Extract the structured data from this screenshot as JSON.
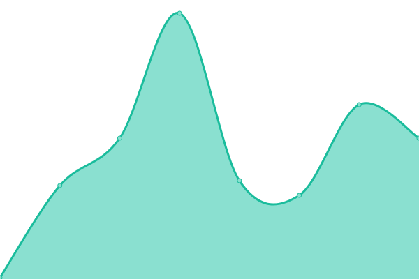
{
  "chart_data": {
    "type": "area",
    "title": "",
    "xlabel": "",
    "ylabel": "",
    "x": [
      0,
      1,
      2,
      3,
      4,
      5,
      6,
      7
    ],
    "values": [
      2,
      134,
      202,
      381,
      141,
      120,
      250,
      202
    ],
    "ylim": [
      0,
      400
    ],
    "grid": false,
    "axes_visible": false,
    "curve": "smooth",
    "colors": {
      "line": "#1abc9c",
      "fill": "#8ae0d0",
      "point": "#8ae0d0"
    }
  }
}
